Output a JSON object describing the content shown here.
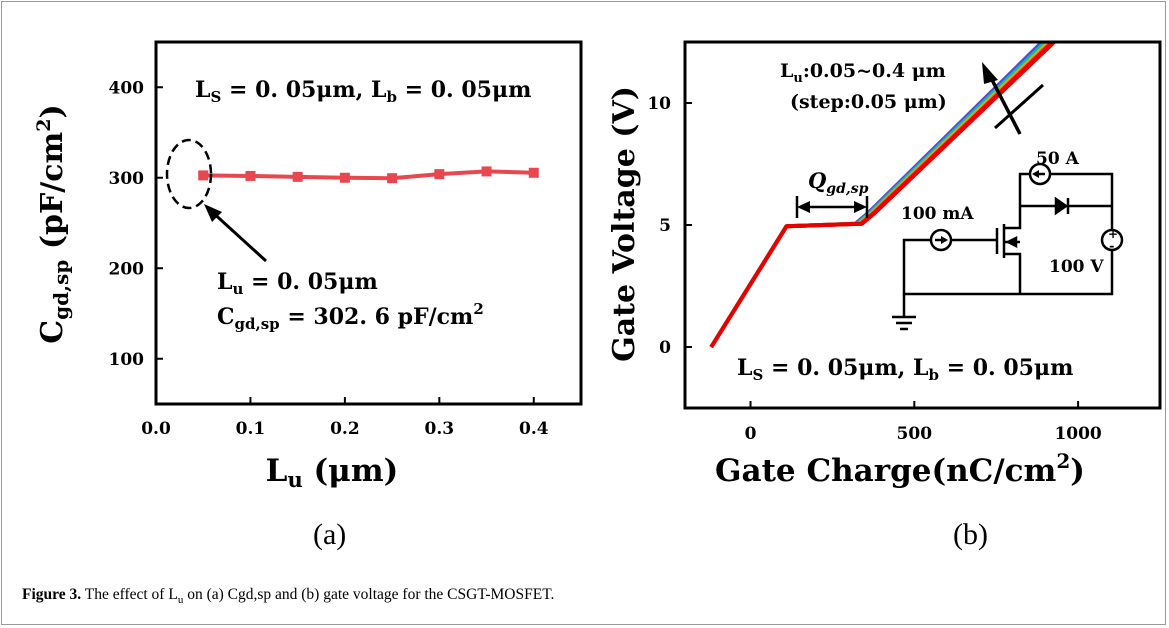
{
  "figure": {
    "caption_bold": "Figure 3.",
    "caption_rest": " The effect of L",
    "caption_sub": "u",
    "caption_tail": " on (a) Cgd,sp and (b) gate voltage for the CSGT-MOSFET.",
    "panel_a_label": "(a)",
    "panel_b_label": "(b)"
  },
  "chart_data": [
    {
      "type": "line",
      "ylabel": "C",
      "ylabel_sub": "gd,sp",
      "ylabel_unit": " (pF/cm",
      "ylabel_unit_sup": "2",
      "ylabel_close": ")",
      "xlabel": "L",
      "xlabel_sub": "u",
      "xlabel_unit": " (μm)",
      "xlim": [
        0.0,
        0.45
      ],
      "ylim": [
        50,
        450
      ],
      "xticks": [
        "0.0",
        "0.1",
        "0.2",
        "0.3",
        "0.4"
      ],
      "yticks": [
        "100",
        "200",
        "300",
        "400"
      ],
      "color": "#e8474f",
      "x": [
        0.05,
        0.1,
        0.15,
        0.2,
        0.25,
        0.3,
        0.35,
        0.4
      ],
      "y": [
        302.6,
        302,
        301,
        300,
        299.5,
        304,
        307,
        305.5
      ],
      "annotation_top": {
        "ls": "L",
        "ls_sub": "S",
        "ls_val": " = 0. 05μm, ",
        "lb": "L",
        "lb_sub": "b",
        "lb_val": " = 0. 05μm"
      },
      "annotation_point": {
        "lu": "L",
        "lu_sub": "u",
        "lu_val": " = 0. 05μm",
        "c": "C",
        "c_sub": "gd,sp",
        "c_val": " = 302. 6 pF/cm",
        "c_sup": "2"
      }
    },
    {
      "type": "line",
      "ylabel": "Gate Voltage (V)",
      "xlabel": "Gate Charge(nC/cm",
      "xlabel_sup": "2",
      "xlabel_close": ")",
      "xlim": [
        -200,
        1250
      ],
      "ylim": [
        -2.5,
        12.5
      ],
      "xticks": [
        "0",
        "500",
        "1000"
      ],
      "yticks": [
        "0",
        "5",
        "10"
      ],
      "series_colors": [
        "#6a3ec9",
        "#3060e0",
        "#20b0d0",
        "#20c060",
        "#c0c020",
        "#f08020",
        "#ff0000",
        "#e60000"
      ],
      "q_label": "Q",
      "q_sub": "gd,sp",
      "lu_range": "L",
      "lu_range_sub": "u",
      "lu_range_val": ":0.05~0.4 μm",
      "step": "(step:0.05 μm)",
      "circuit": {
        "current_a": "50 A",
        "current_ma": "100 mA",
        "voltage": "100 V"
      },
      "annotation_bottom": {
        "ls": "L",
        "ls_sub": "S",
        "ls_val": " = 0. 05μm, ",
        "lb": "L",
        "lb_sub": "b",
        "lb_val": " = 0. 05μm"
      }
    }
  ]
}
